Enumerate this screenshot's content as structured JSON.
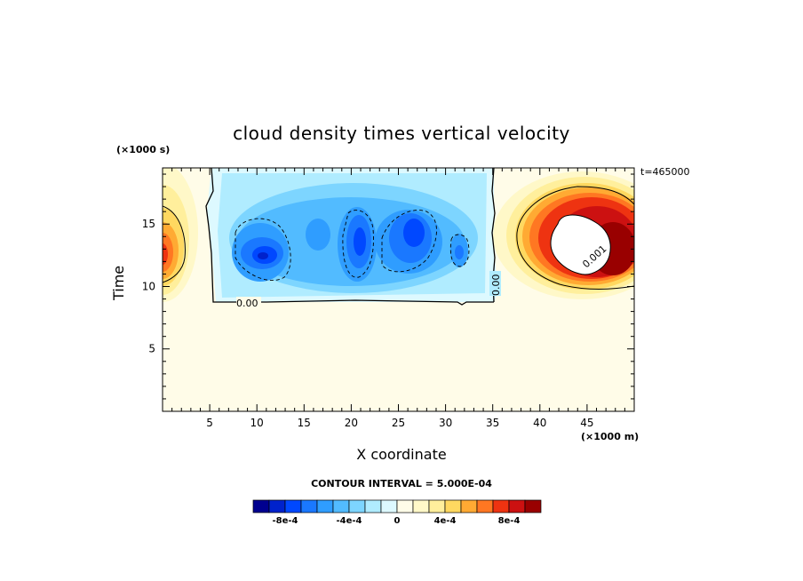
{
  "chart_data": {
    "type": "heatmap",
    "title": "cloud density times vertical velocity",
    "xlabel": "X coordinate",
    "ylabel": "Time",
    "x_unit": "(×1000 m)",
    "y_unit": "(×1000 s)",
    "timestamp": "t=465000",
    "xlim": [
      0,
      50
    ],
    "ylim": [
      0,
      19.5
    ],
    "x_ticks": [
      "5",
      "10",
      "15",
      "20",
      "25",
      "30",
      "35",
      "40",
      "45"
    ],
    "y_ticks": [
      "5",
      "10",
      "15"
    ],
    "contour_labels": [
      "0.00",
      "0.00",
      "0.001"
    ],
    "contour_interval": "CONTOUR INTERVAL = 5.000E-04",
    "colorbar": {
      "tick_labels": [
        "-8e-4",
        "-4e-4",
        "0",
        "4e-4",
        "8e-4"
      ],
      "colors": [
        "#00008f",
        "#0022cc",
        "#0048ff",
        "#1a78ff",
        "#2f9dff",
        "#52bbff",
        "#7dd5ff",
        "#b0ecff",
        "#ddf9ff",
        "#fffce8",
        "#fff8c8",
        "#ffef9c",
        "#ffd860",
        "#ffaa33",
        "#ff7722",
        "#ee3311",
        "#cc1111",
        "#990000"
      ]
    },
    "grid": false
  }
}
